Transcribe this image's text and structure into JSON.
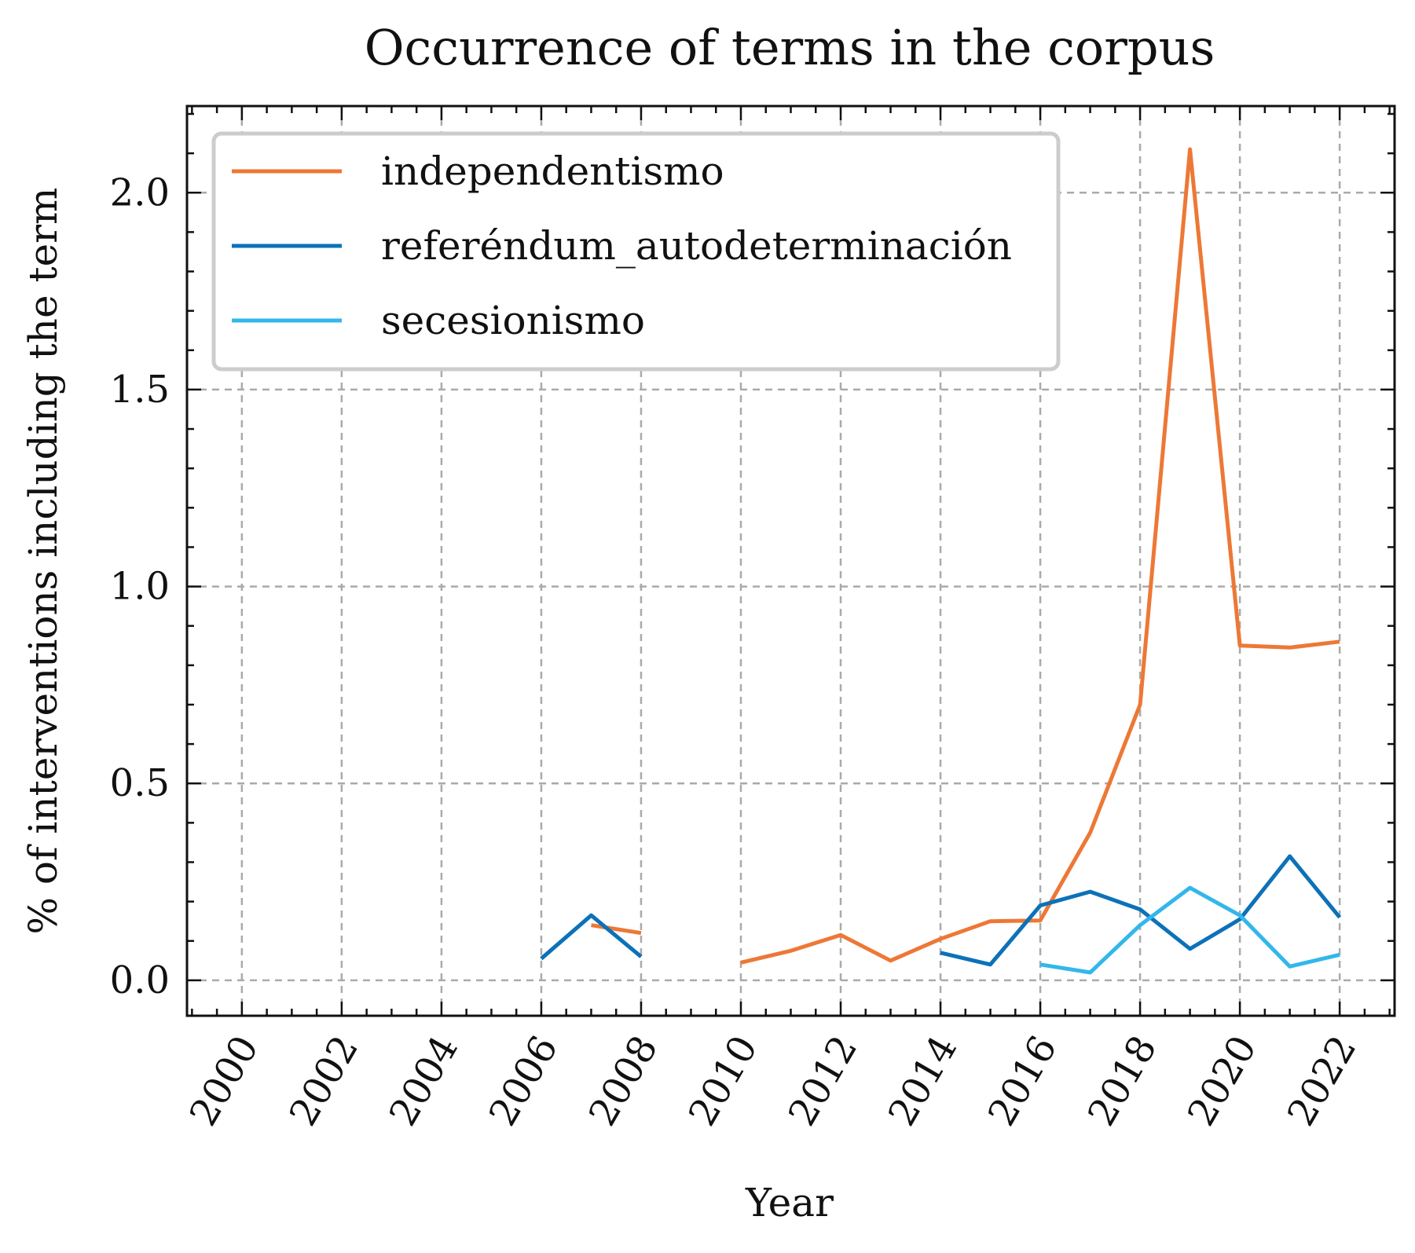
{
  "chart_data": {
    "type": "line",
    "title": "Occurrence of terms in the corpus",
    "xlabel": "Year",
    "ylabel": "% of interventions including the term",
    "xlim": [
      1998.9,
      2023.1
    ],
    "ylim": [
      -0.09,
      2.22
    ],
    "xticks": [
      2000,
      2002,
      2004,
      2006,
      2008,
      2010,
      2012,
      2014,
      2016,
      2018,
      2020,
      2022
    ],
    "xtick_labels": [
      "2000",
      "2002",
      "2004",
      "2006",
      "2008",
      "2010",
      "2012",
      "2014",
      "2016",
      "2018",
      "2020",
      "2022"
    ],
    "yticks": [
      0.0,
      0.5,
      1.0,
      1.5,
      2.0
    ],
    "ytick_labels": [
      "0.0",
      "0.5",
      "1.0",
      "1.5",
      "2.0"
    ],
    "grid": true,
    "legend_position": "upper-left",
    "series": [
      {
        "name": "independentismo",
        "color": "#ED7836",
        "segments": [
          [
            [
              2007,
              0.14
            ],
            [
              2008,
              0.12
            ]
          ],
          [
            [
              2010,
              0.045
            ],
            [
              2011,
              0.075
            ],
            [
              2012,
              0.115
            ],
            [
              2013,
              0.05
            ],
            [
              2014,
              0.105
            ],
            [
              2015,
              0.15
            ],
            [
              2016,
              0.152
            ],
            [
              2017,
              0.375
            ],
            [
              2018,
              0.7
            ],
            [
              2019,
              2.11
            ],
            [
              2020,
              0.85
            ],
            [
              2021,
              0.845
            ],
            [
              2022,
              0.86
            ]
          ]
        ]
      },
      {
        "name": "referéndum_autodeterminación",
        "color": "#0C72B8",
        "segments": [
          [
            [
              2006,
              0.055
            ],
            [
              2007,
              0.165
            ],
            [
              2008,
              0.06
            ]
          ],
          [
            [
              2014,
              0.07
            ],
            [
              2015,
              0.04
            ],
            [
              2016,
              0.19
            ],
            [
              2017,
              0.225
            ],
            [
              2018,
              0.18
            ],
            [
              2019,
              0.08
            ],
            [
              2020,
              0.155
            ],
            [
              2021,
              0.315
            ],
            [
              2022,
              0.16
            ]
          ]
        ]
      },
      {
        "name": "secesionismo",
        "color": "#33B7EB",
        "segments": [
          [
            [
              2016,
              0.04
            ],
            [
              2017,
              0.02
            ],
            [
              2018,
              0.14
            ],
            [
              2019,
              0.235
            ],
            [
              2020,
              0.165
            ],
            [
              2021,
              0.035
            ],
            [
              2022,
              0.065
            ]
          ]
        ]
      }
    ]
  }
}
